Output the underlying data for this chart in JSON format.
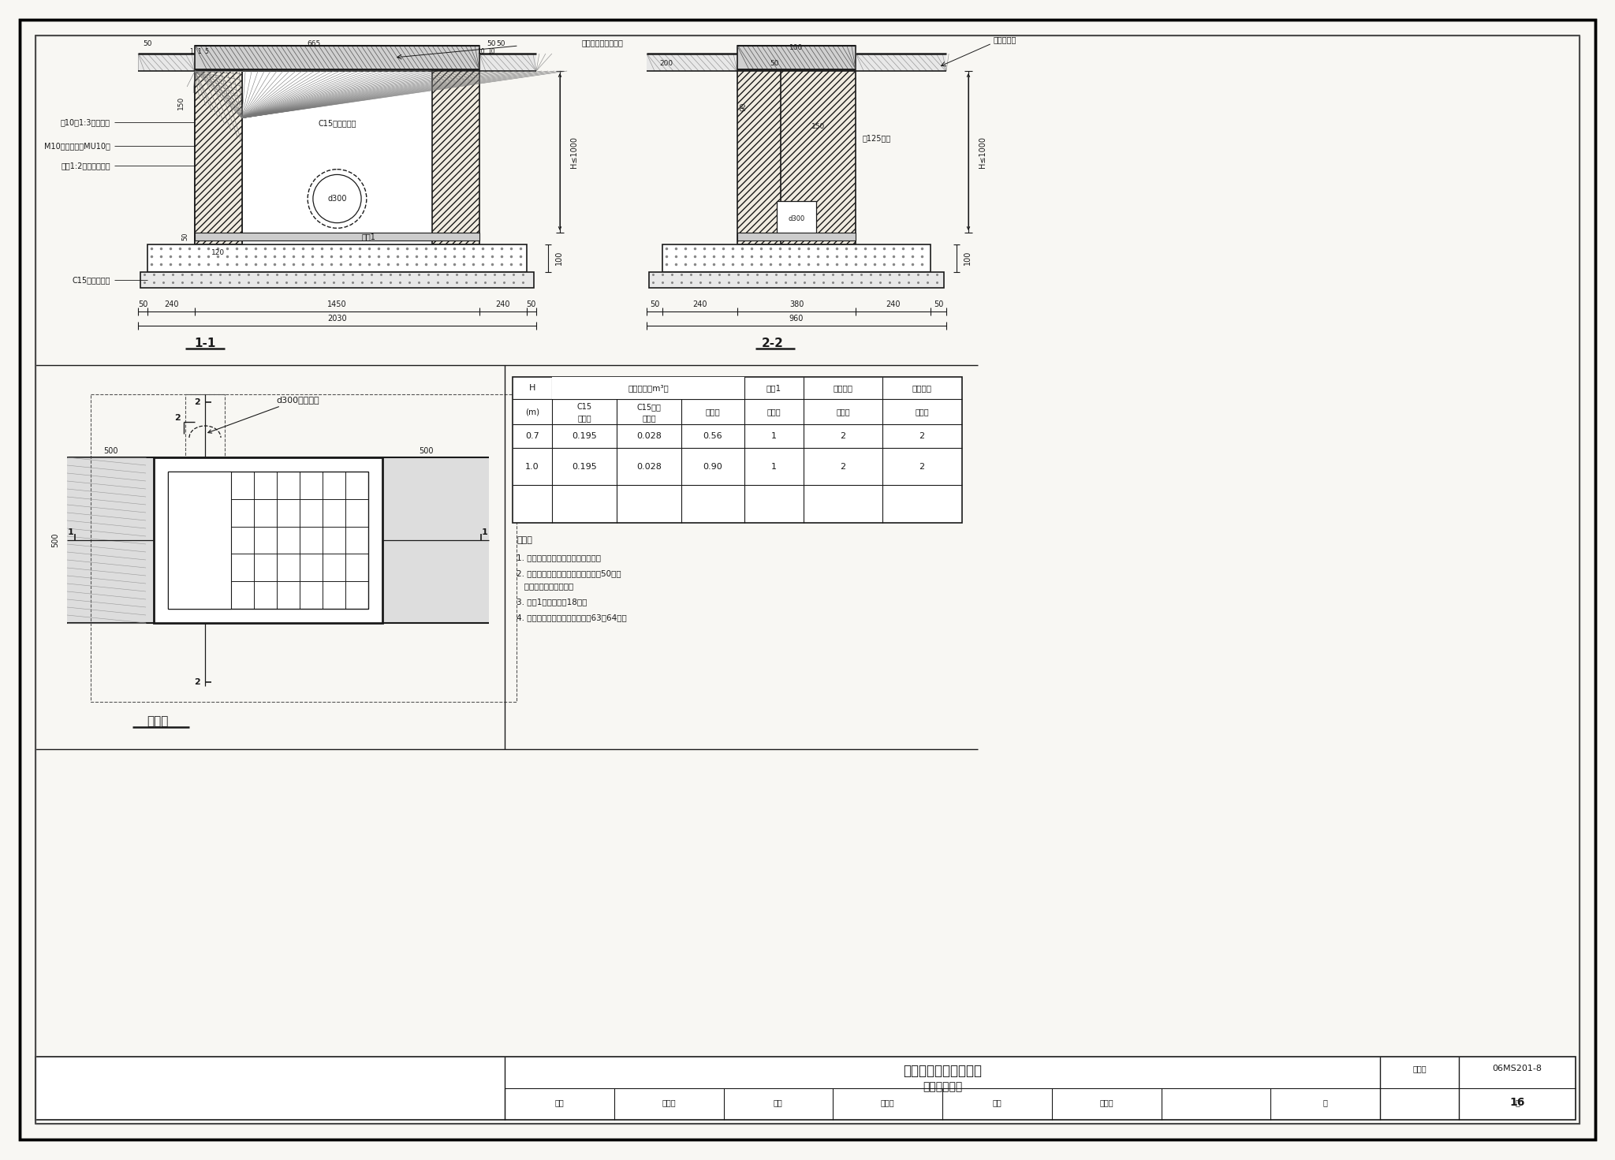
{
  "bg_color": "#f8f7f3",
  "line_color": "#1a1a1a",
  "title_main": "砖砌立算式双算雨水口",
  "title_sub": "（铸铁井圈）",
  "drawing_number": "06MS201-8",
  "page_number": "16",
  "notes": [
    "1. 适用于有道牙、有人行道的路面。",
    "2. 雨水口进水处路面应比周围路面低50，路",
    "   面应顺坡坡向雨水口。",
    "3. 过梁1见本图集第18页。",
    "4. 井盖、井座及算子见本图集第63、64页。"
  ],
  "table_rows": [
    [
      "0.7",
      "0.195",
      "0.028",
      "0.56",
      "1",
      "2",
      "2"
    ],
    [
      "1.0",
      "0.195",
      "0.028",
      "0.90",
      "1",
      "2",
      "2"
    ]
  ],
  "footer_labels": [
    "审核",
    "王儒山",
    "校对",
    "盛奕节",
    "设计",
    "温丽晖",
    "页"
  ]
}
